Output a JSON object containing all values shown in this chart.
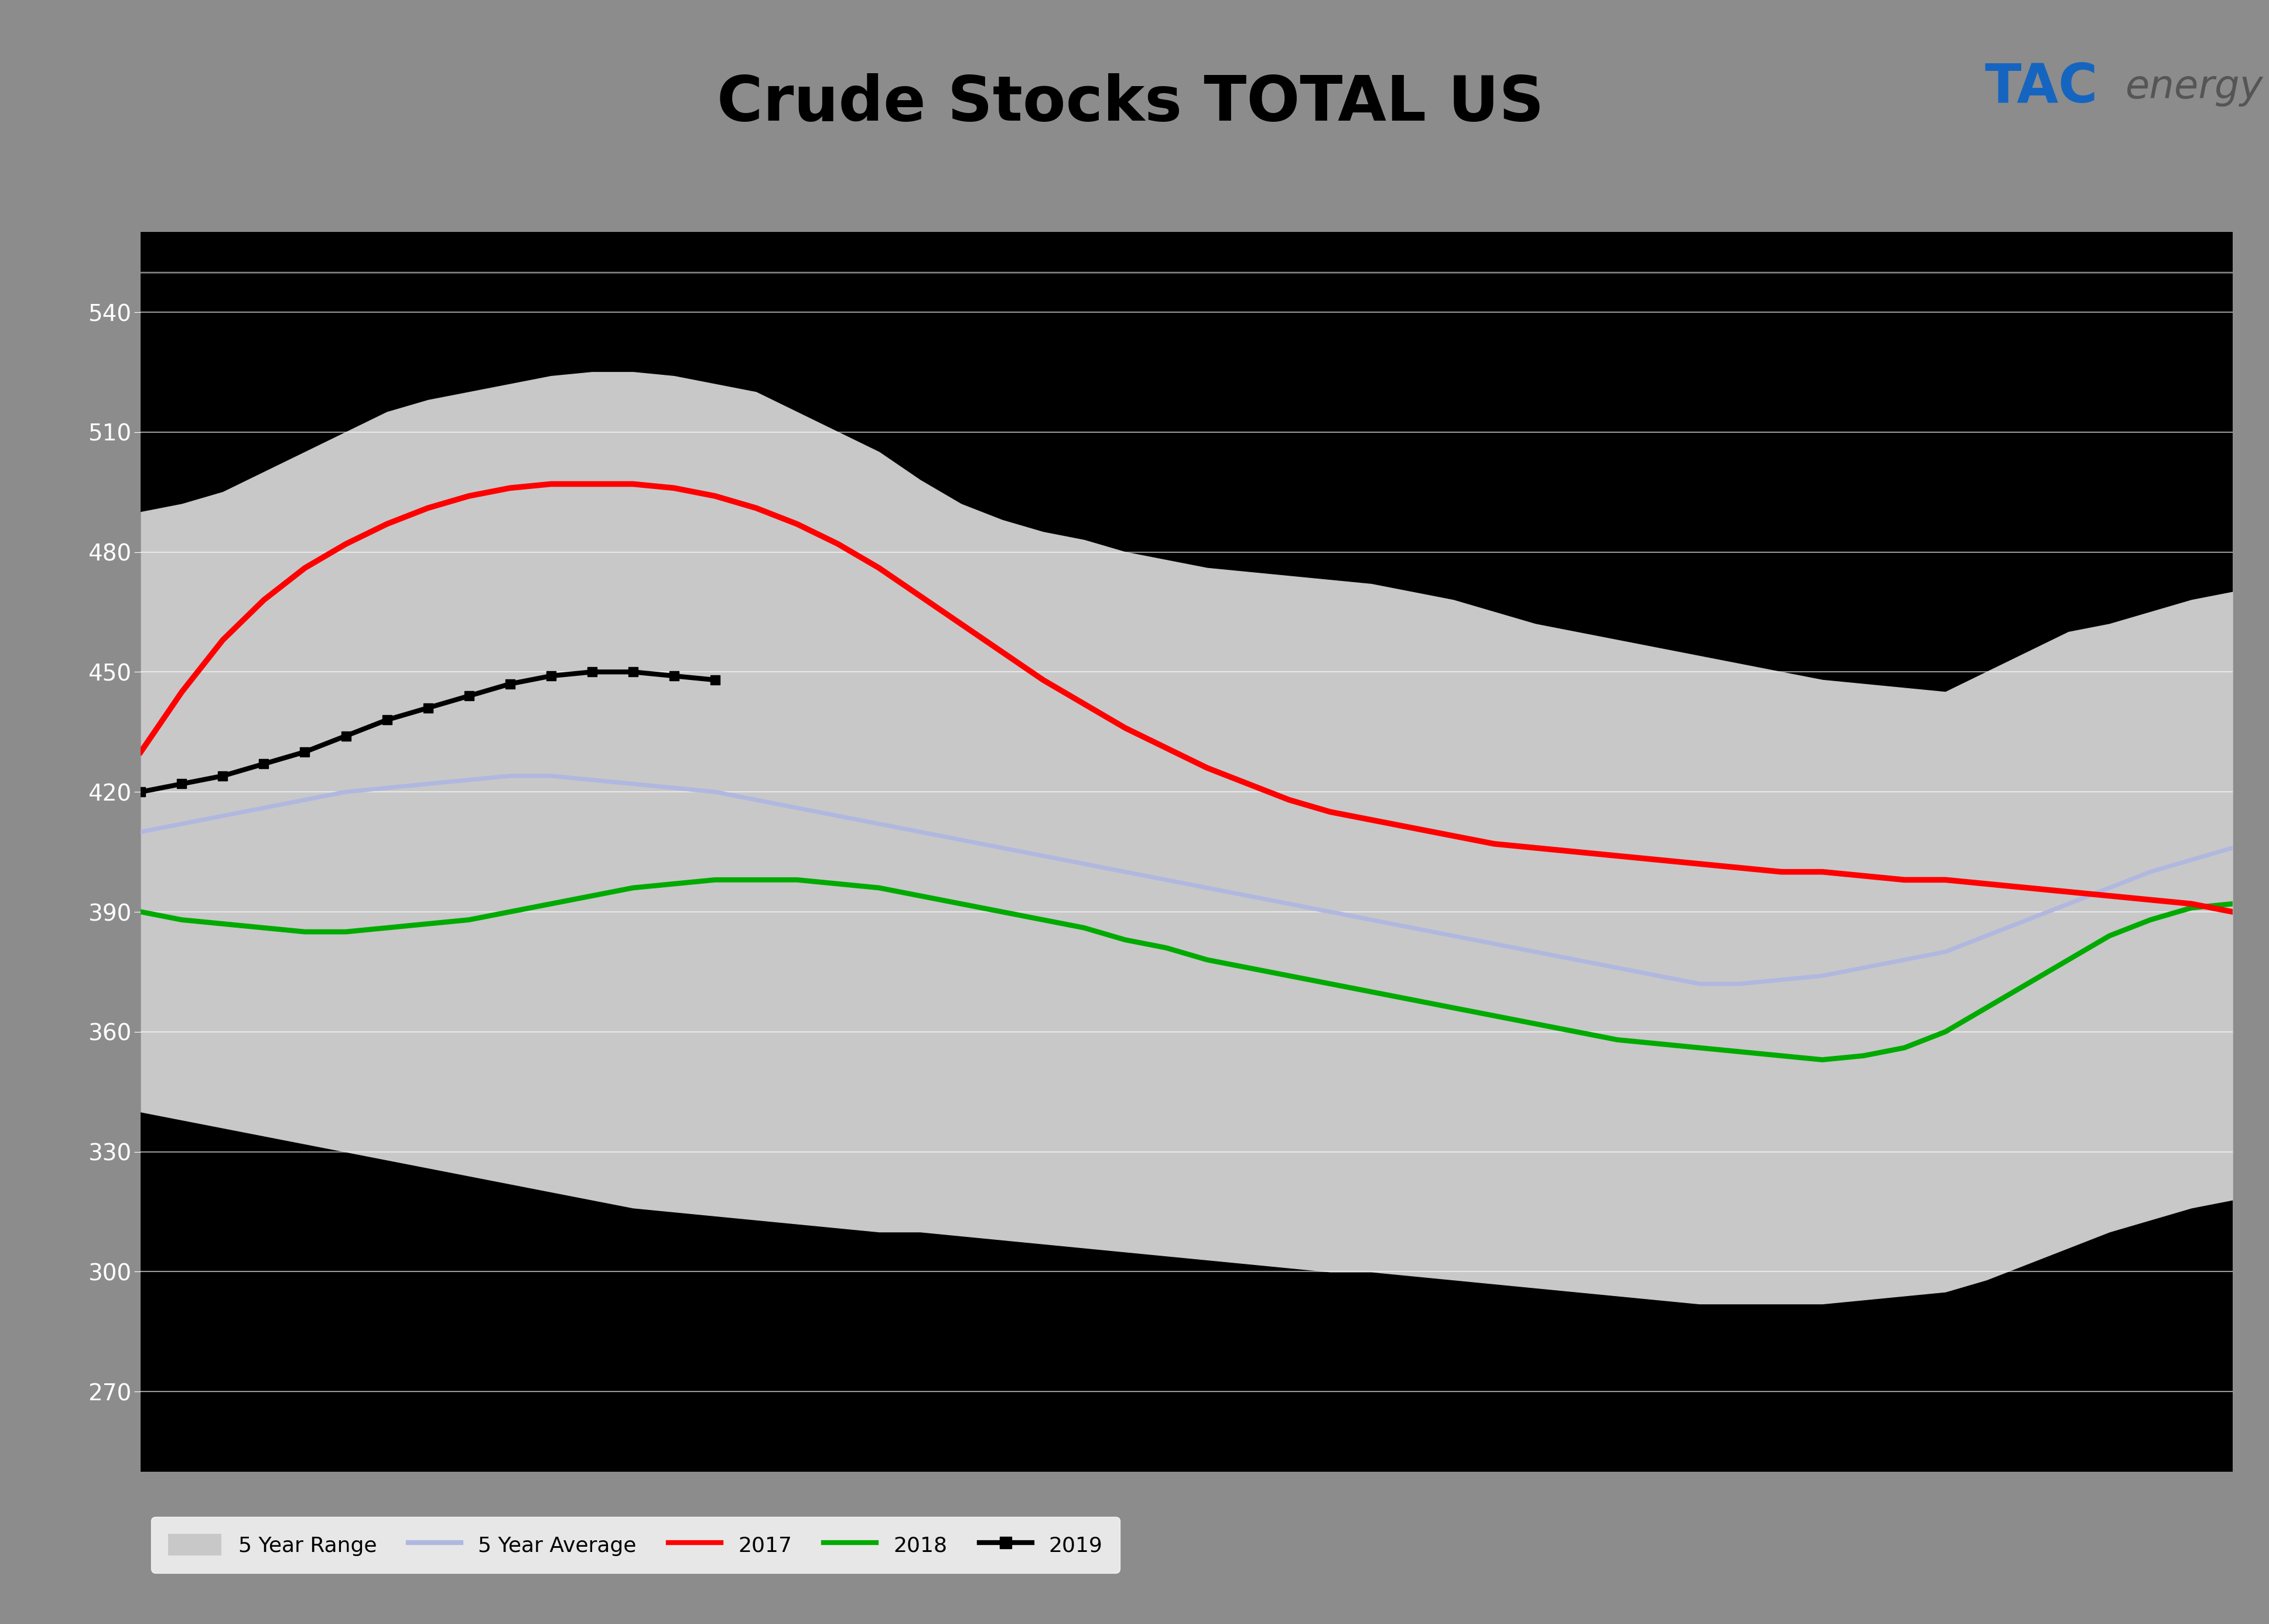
{
  "title": "Crude Stocks TOTAL US",
  "title_fontsize": 22,
  "background_color": "#000000",
  "header_gray": "#a0a0a0",
  "header_blue": "#1565c0",
  "header_yellow": "#f5c518",
  "fig_bg": "#8c8c8c",
  "ylim": [
    250,
    560
  ],
  "yticks": [
    270,
    300,
    330,
    360,
    390,
    420,
    450,
    480,
    510,
    540
  ],
  "n_weeks": 52,
  "range_upper": [
    490,
    492,
    495,
    500,
    505,
    510,
    515,
    518,
    520,
    522,
    524,
    525,
    525,
    524,
    522,
    520,
    515,
    510,
    505,
    498,
    492,
    488,
    485,
    483,
    480,
    478,
    476,
    475,
    474,
    473,
    472,
    470,
    468,
    465,
    462,
    460,
    458,
    456,
    454,
    452,
    450,
    448,
    447,
    446,
    445,
    450,
    455,
    460,
    462,
    465,
    468,
    470
  ],
  "range_lower": [
    340,
    338,
    336,
    334,
    332,
    330,
    328,
    326,
    324,
    322,
    320,
    318,
    316,
    315,
    314,
    313,
    312,
    311,
    310,
    310,
    309,
    308,
    307,
    306,
    305,
    304,
    303,
    302,
    301,
    300,
    300,
    299,
    298,
    297,
    296,
    295,
    294,
    293,
    292,
    292,
    292,
    292,
    293,
    294,
    295,
    298,
    302,
    306,
    310,
    313,
    316,
    318
  ],
  "avg_5yr": [
    410,
    412,
    414,
    416,
    418,
    420,
    421,
    422,
    423,
    424,
    424,
    423,
    422,
    421,
    420,
    418,
    416,
    414,
    412,
    410,
    408,
    406,
    404,
    402,
    400,
    398,
    396,
    394,
    392,
    390,
    388,
    386,
    384,
    382,
    380,
    378,
    376,
    374,
    372,
    372,
    373,
    374,
    376,
    378,
    380,
    384,
    388,
    392,
    396,
    400,
    403,
    406
  ],
  "line_2017": [
    430,
    445,
    458,
    468,
    476,
    482,
    487,
    491,
    494,
    496,
    497,
    497,
    497,
    496,
    494,
    491,
    487,
    482,
    476,
    469,
    462,
    455,
    448,
    442,
    436,
    431,
    426,
    422,
    418,
    415,
    413,
    411,
    409,
    407,
    406,
    405,
    404,
    403,
    402,
    401,
    400,
    400,
    399,
    398,
    398,
    397,
    396,
    395,
    394,
    393,
    392,
    390
  ],
  "line_2018": [
    390,
    388,
    387,
    386,
    385,
    385,
    386,
    387,
    388,
    390,
    392,
    394,
    396,
    397,
    398,
    398,
    398,
    397,
    396,
    394,
    392,
    390,
    388,
    386,
    383,
    381,
    378,
    376,
    374,
    372,
    370,
    368,
    366,
    364,
    362,
    360,
    358,
    357,
    356,
    355,
    354,
    353,
    354,
    356,
    360,
    366,
    372,
    378,
    384,
    388,
    391,
    392
  ],
  "line_2019": [
    420,
    422,
    424,
    427,
    430,
    434,
    438,
    441,
    444,
    447,
    449,
    450,
    450,
    449,
    448,
    null,
    null,
    null,
    null,
    null,
    null,
    null,
    null,
    null,
    null,
    null,
    null,
    null,
    null,
    null,
    null,
    null,
    null,
    null,
    null,
    null,
    null,
    null,
    null,
    null,
    null,
    null,
    null,
    null,
    null,
    null,
    null,
    null,
    null,
    null,
    null,
    null
  ],
  "legend_items": [
    "5 Year Range",
    "5 Year Average",
    "2017",
    "2018",
    "2019"
  ],
  "range_color": "#c8c8c8",
  "avg_color": "#b0b8e0",
  "color_2017": "#ff0000",
  "color_2018": "#00aa00",
  "color_2019": "#000000",
  "lw_main": 3.5,
  "lw_2019": 3.0
}
